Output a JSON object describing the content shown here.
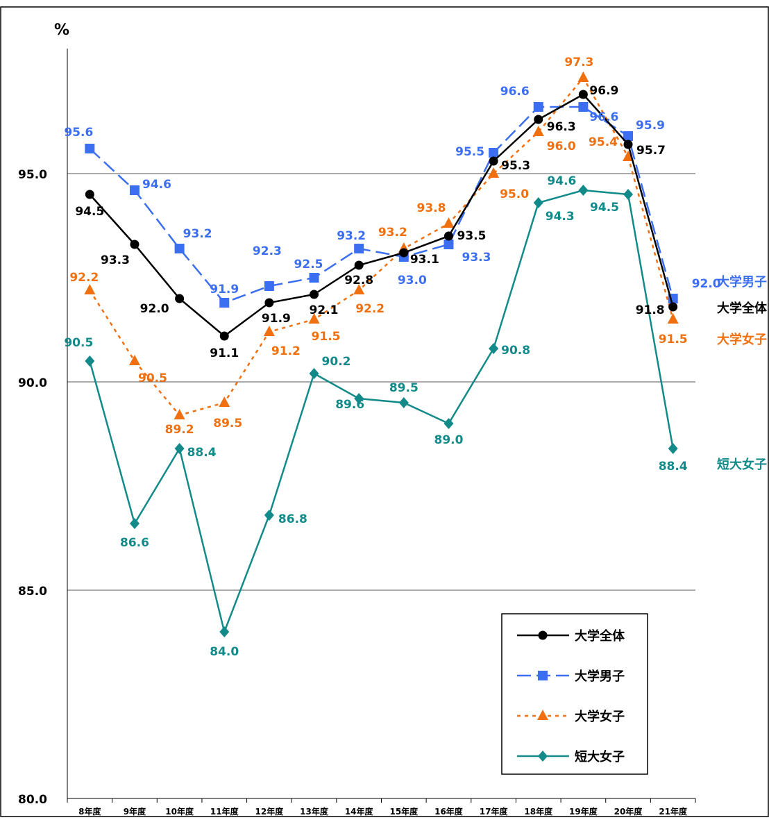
{
  "chart_data": {
    "type": "line",
    "unit_label": "%",
    "categories": [
      "8年度",
      "9年度",
      "10年度",
      "11年度",
      "12年度",
      "13年度",
      "14年度",
      "15年度",
      "16年度",
      "17年度",
      "18年度",
      "19年度",
      "20年度",
      "21年度"
    ],
    "ylim": [
      80,
      97.3
    ],
    "yticks": [
      "80.0",
      "85.0",
      "90.0",
      "95.0"
    ],
    "grid": true,
    "legend_position": "bottom-right",
    "series": [
      {
        "name": "大学全体",
        "color": "#000000",
        "marker": "circle",
        "dash": "solid",
        "values": [
          94.5,
          93.3,
          92.0,
          91.1,
          91.9,
          92.1,
          92.8,
          93.1,
          93.5,
          95.3,
          96.3,
          96.9,
          95.7,
          91.8
        ],
        "labels": [
          "94.5",
          "93.3",
          "92.0",
          "91.1",
          "91.9",
          "92.1",
          "92.8",
          "93.1",
          "93.5",
          "95.3",
          "96.3",
          "96.9",
          "95.7",
          "91.8"
        ]
      },
      {
        "name": "大学男子",
        "color": "#3b6ef0",
        "marker": "square",
        "dash": "dashed",
        "values": [
          95.6,
          94.6,
          93.2,
          91.9,
          92.3,
          92.5,
          93.2,
          93.0,
          93.3,
          95.5,
          96.6,
          96.6,
          95.9,
          92.0
        ],
        "labels": [
          "95.6",
          "94.6",
          "93.2",
          "91.9",
          "92.3",
          "92.5",
          "93.2",
          "93.0",
          "93.3",
          "95.5",
          "96.6",
          "96.6",
          "95.9",
          "92.0"
        ]
      },
      {
        "name": "大学女子",
        "color": "#f07010",
        "marker": "triangle",
        "dash": "dotted",
        "values": [
          92.2,
          90.5,
          89.2,
          89.5,
          91.2,
          91.5,
          92.2,
          93.2,
          93.8,
          95.0,
          96.0,
          97.3,
          95.4,
          91.5
        ],
        "labels": [
          "92.2",
          "90.5",
          "89.2",
          "89.5",
          "91.2",
          "91.5",
          "92.2",
          "93.2",
          "93.8",
          "95.0",
          "96.0",
          "97.3",
          "95.4",
          "91.5"
        ]
      },
      {
        "name": "短大女子",
        "color": "#138a8a",
        "marker": "diamond",
        "dash": "solid",
        "values": [
          90.5,
          86.6,
          88.4,
          84.0,
          86.8,
          90.2,
          89.6,
          89.5,
          89.0,
          90.8,
          94.3,
          94.6,
          94.5,
          88.4
        ],
        "labels": [
          "90.5",
          "86.6",
          "88.4",
          "84.0",
          "86.8",
          "90.2",
          "89.6",
          "89.5",
          "89.0",
          "90.8",
          "94.3",
          "94.6",
          "94.5",
          "88.4"
        ]
      }
    ]
  }
}
